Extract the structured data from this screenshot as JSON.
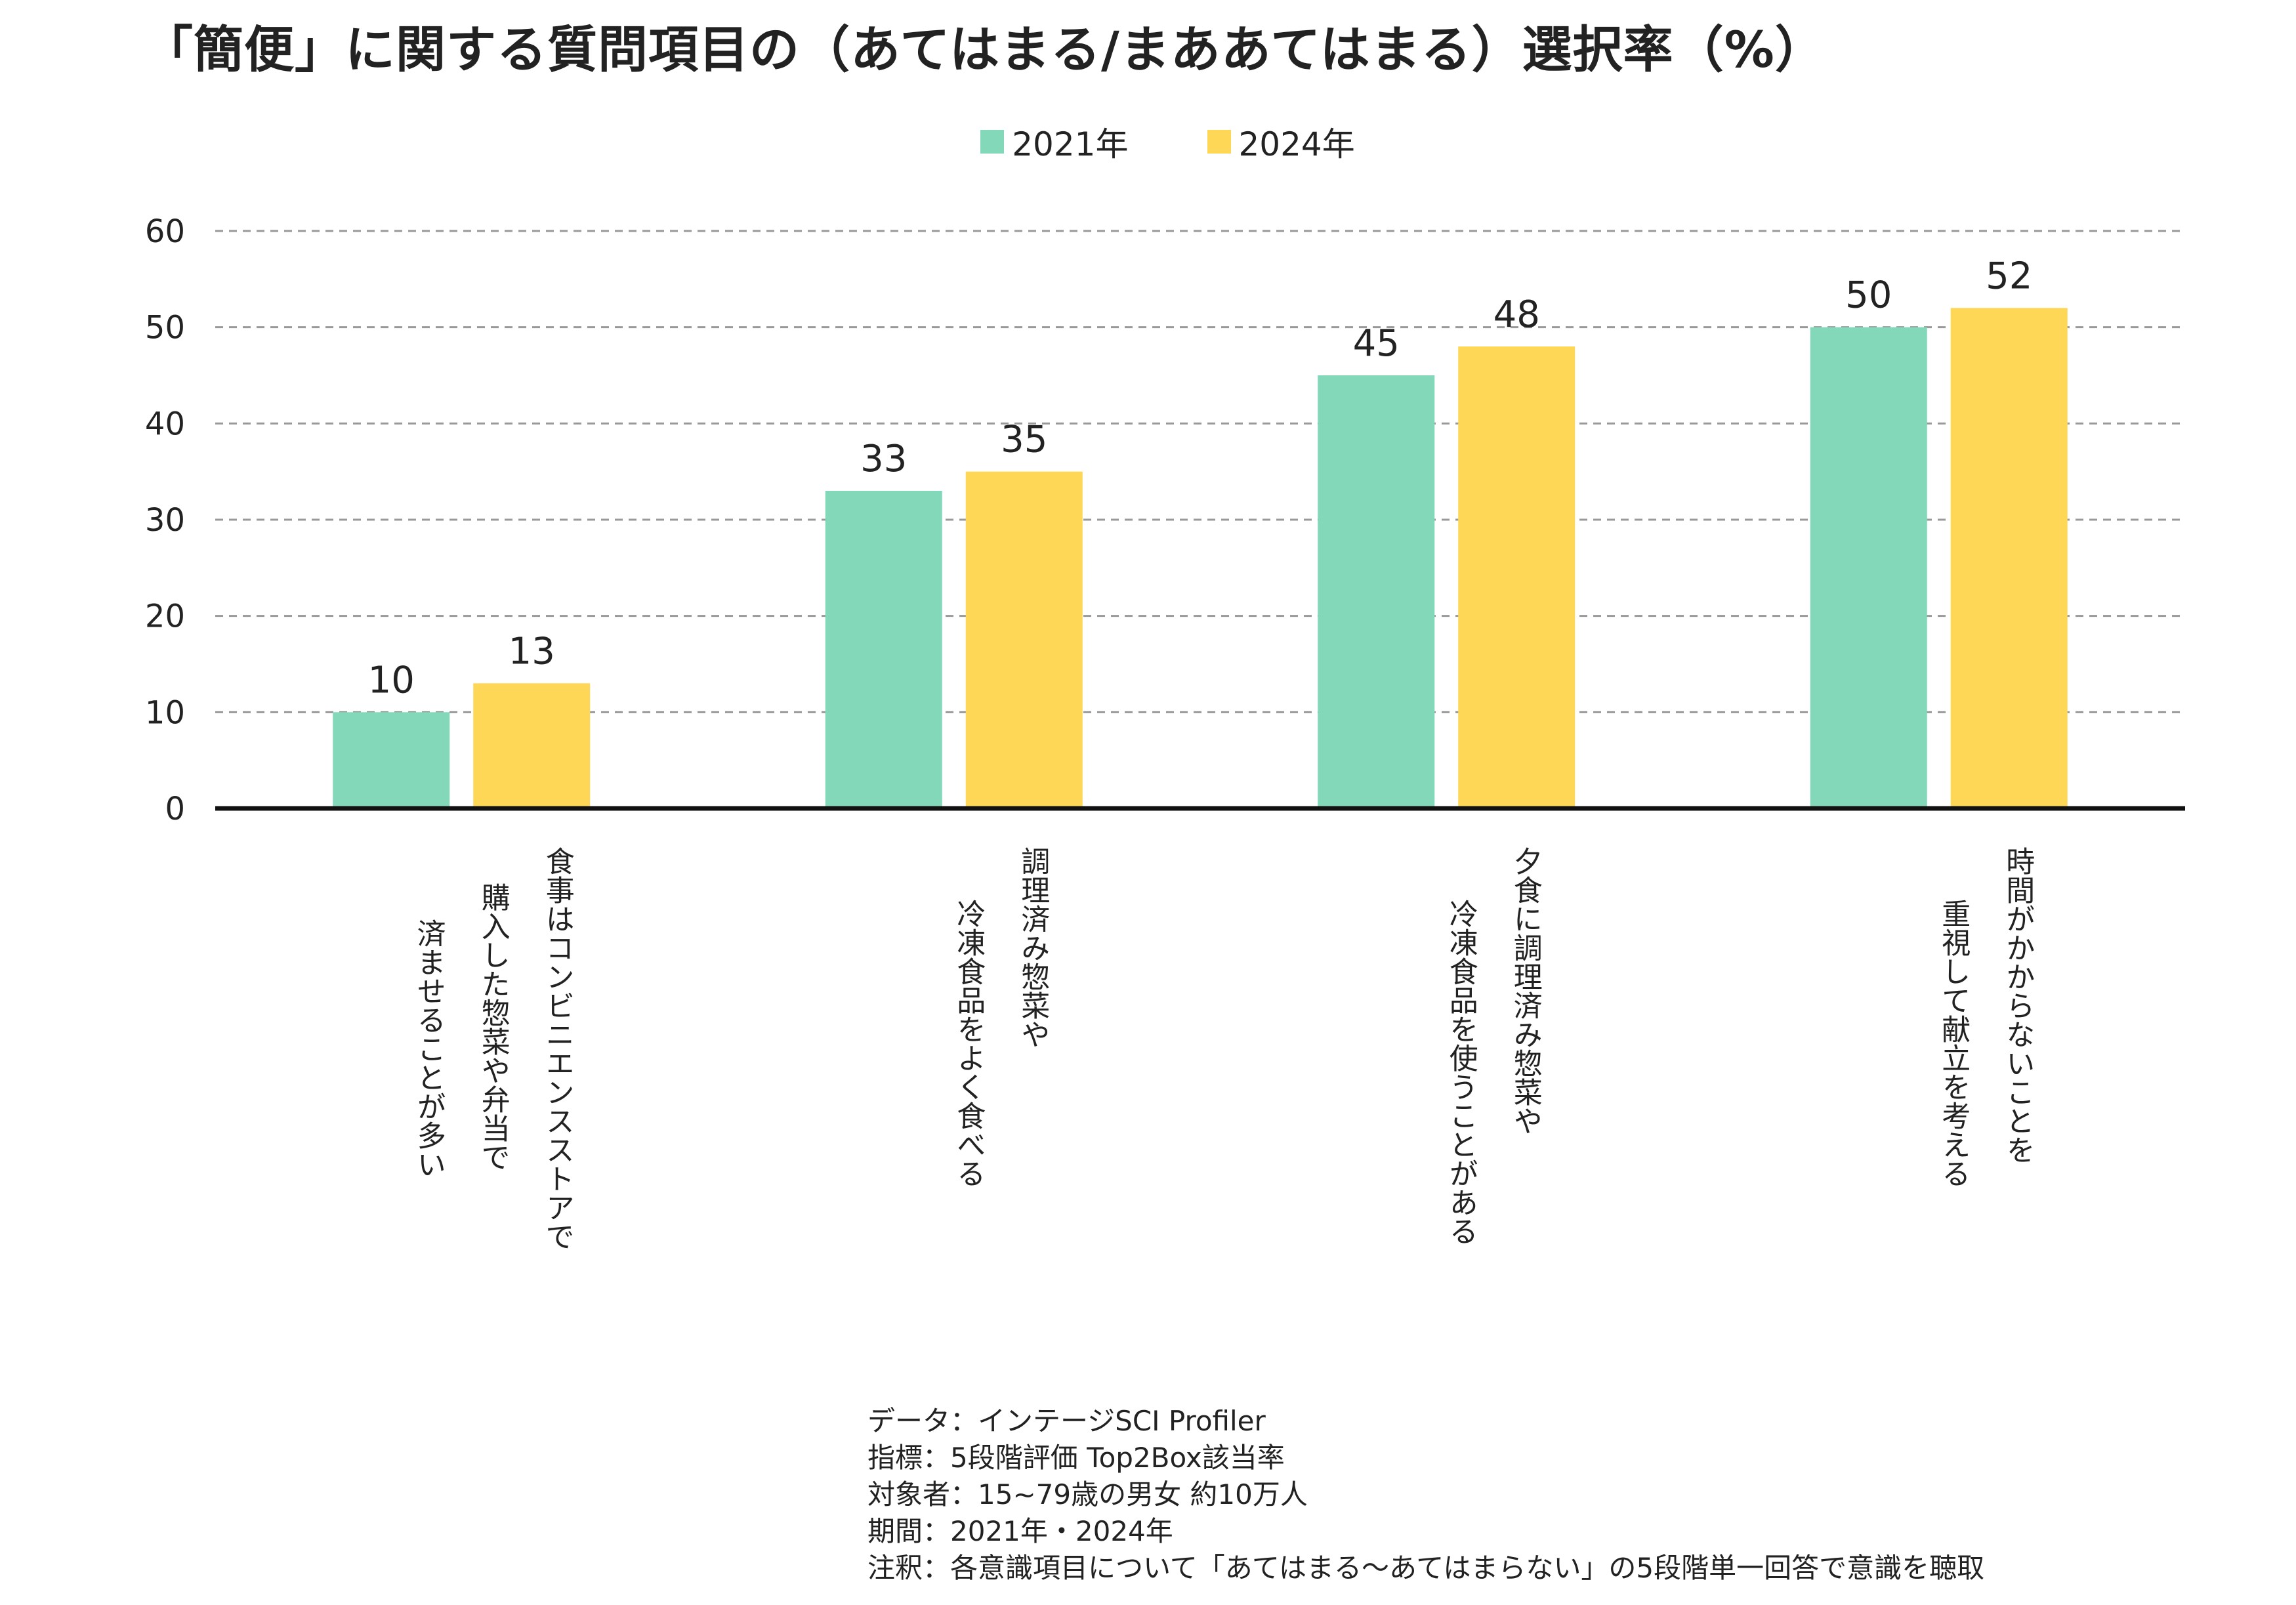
{
  "title": "「簡便」に関する質問項目の（あてはまる/まああてはまる）選択率（%）",
  "colors": {
    "s2021": "#82d8b9",
    "s2024": "#fdd755",
    "grid": "#999999",
    "axis": "#111111"
  },
  "chart_data": {
    "type": "bar",
    "title": "「簡便」に関する質問項目の（あてはまる/まああてはまる）選択率（%）",
    "xlabel": "",
    "ylabel": "",
    "ylim": [
      0,
      60
    ],
    "yticks": [
      "0",
      "10",
      "20",
      "30",
      "40",
      "50",
      "60"
    ],
    "grid": true,
    "legend_position": "top-center",
    "categories": [
      [
        "食事はコンビニエンスストアで",
        "購入した惣菜や弁当で",
        "済ませることが多い"
      ],
      [
        "調理済み惣菜や",
        "冷凍食品をよく食べる"
      ],
      [
        "夕食に調理済み惣菜や",
        "冷凍食品を使うことがある"
      ],
      [
        "時間がかからないことを",
        "重視して献立を考える"
      ]
    ],
    "series": [
      {
        "name": "2021年",
        "values": [
          10,
          33,
          45,
          50
        ],
        "labels": [
          "10",
          "33",
          "45",
          "50"
        ],
        "color": "#82d8b9"
      },
      {
        "name": "2024年",
        "values": [
          13,
          35,
          48,
          52
        ],
        "labels": [
          "13",
          "35",
          "48",
          "52"
        ],
        "color": "#fdd755"
      }
    ]
  },
  "notes": [
    "データ：インテージSCI Profiler",
    "指標：5段階評価 Top2Box該当率",
    "対象者：15~79歳の男女 約10万人",
    "期間：2021年・2024年",
    "注釈：各意識項目について「あてはまる〜あてはまらない」の5段階単一回答で意識を聴取"
  ]
}
